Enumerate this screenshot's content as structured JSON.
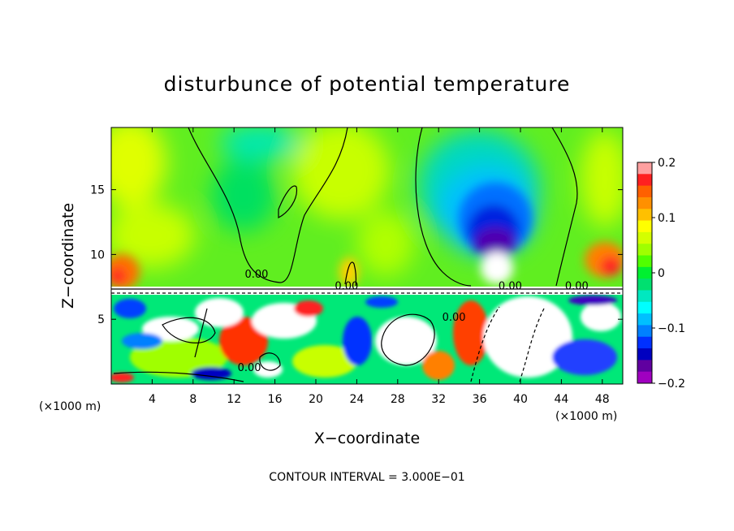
{
  "chart_data": {
    "type": "heatmap",
    "title": "disturbunce of potential temperature",
    "xlabel": "X−coordinate",
    "ylabel": "Z−coordinate",
    "x_unit": "(×1000 m)",
    "x_unit_right": "(×1000 m)",
    "xlim": [
      0,
      50
    ],
    "ylim": [
      0,
      19.8
    ],
    "x_ticks": [
      4,
      8,
      12,
      16,
      20,
      24,
      28,
      32,
      36,
      40,
      44,
      48
    ],
    "x_tick_labels": [
      "4",
      "8",
      "12",
      "16",
      "20",
      "24",
      "28",
      "32",
      "36",
      "40",
      "44",
      "48"
    ],
    "y_ticks": [
      5,
      10,
      15
    ],
    "y_tick_labels": [
      "5",
      "10",
      "15"
    ],
    "colorbar": {
      "range": [
        -0.2,
        0.2
      ],
      "tick_values": [
        0.2,
        0.1,
        0,
        -0.1,
        -0.2
      ],
      "tick_labels": [
        "0.2",
        "0.1",
        "0",
        "−0.1",
        "−0.2"
      ],
      "colors": [
        "#ffa0a0",
        "#ff2020",
        "#ff6000",
        "#ff9000",
        "#ffc000",
        "#ffff00",
        "#d4ff00",
        "#a0ff00",
        "#50ff00",
        "#00f030",
        "#00e070",
        "#00e8c0",
        "#00ffff",
        "#00c0ff",
        "#0080ff",
        "#0030ff",
        "#0000c0",
        "#6000a0",
        "#a000c0"
      ]
    },
    "contour_labels": [
      {
        "text": "0.00",
        "x": 14.2,
        "z": 8.2
      },
      {
        "text": "0.00",
        "x": 23.0,
        "z": 7.3
      },
      {
        "text": "0.00",
        "x": 39.0,
        "z": 7.3
      },
      {
        "text": "0.00",
        "x": 45.5,
        "z": 7.3
      },
      {
        "text": "0.00",
        "x": 33.5,
        "z": 4.9
      },
      {
        "text": "0.00",
        "x": 13.5,
        "z": 1.0
      }
    ],
    "footer": "CONTOUR INTERVAL = 3.000E−01"
  }
}
